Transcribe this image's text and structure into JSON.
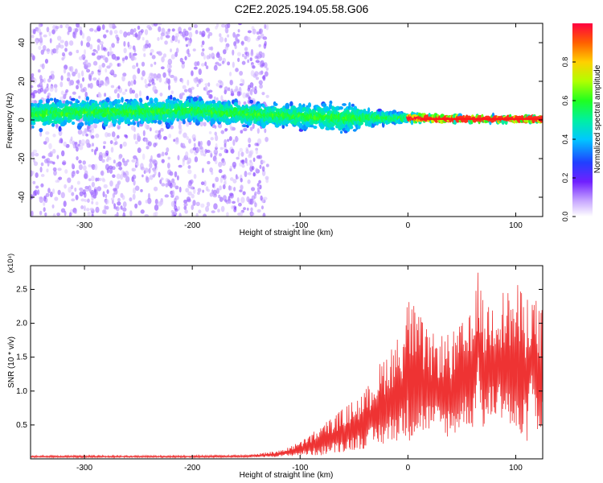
{
  "title": "C2E2.2025.194.05.58.G06",
  "colors": {
    "snr_line": "#ee3333",
    "spectrogram_core": "#ff1a1a",
    "spectrogram_low": "#b080f0"
  },
  "chart_data": [
    {
      "type": "heatmap",
      "xlabel": "Height of straight line (km)",
      "ylabel": "Frequency (Hz)",
      "xlim": [
        -350,
        125
      ],
      "ylim": [
        -50,
        50
      ],
      "xticks": [
        -300,
        -200,
        -100,
        0,
        100
      ],
      "yticks": [
        -40,
        -20,
        0,
        20,
        40
      ],
      "colorbar": {
        "label": "Normalized spectral amplitude",
        "range": [
          0,
          1
        ],
        "ticks": [
          "0.0",
          "0.2",
          "0.4",
          "0.6",
          "0.8"
        ]
      },
      "description_values": {
        "noise_spread_region_x": [
          -350,
          -130
        ],
        "signal_band_center_hz": [
          {
            "x": -340,
            "y": 3
          },
          {
            "x": -300,
            "y": 4
          },
          {
            "x": -250,
            "y": 4
          },
          {
            "x": -200,
            "y": 5
          },
          {
            "x": -150,
            "y": 3
          },
          {
            "x": -100,
            "y": 2
          },
          {
            "x": -60,
            "y": 1
          },
          {
            "x": -30,
            "y": 1
          },
          {
            "x": 0,
            "y": 1
          },
          {
            "x": 50,
            "y": 0.5
          },
          {
            "x": 125,
            "y": 0.5
          }
        ],
        "signal_band_halfwidth_hz": [
          {
            "x": -340,
            "y": 9
          },
          {
            "x": -200,
            "y": 8
          },
          {
            "x": -100,
            "y": 8
          },
          {
            "x": -60,
            "y": 10
          },
          {
            "x": -30,
            "y": 5
          },
          {
            "x": 0,
            "y": 3
          },
          {
            "x": 50,
            "y": 2
          },
          {
            "x": 125,
            "y": 2
          }
        ]
      }
    },
    {
      "type": "line",
      "xlabel": "Height of straight line (km)",
      "ylabel": "SNR (10 * v/v)",
      "y_multiplier": "(x10⁴)",
      "xlim": [
        -350,
        125
      ],
      "ylim": [
        0,
        2.85
      ],
      "xticks": [
        -300,
        -200,
        -100,
        0,
        100
      ],
      "yticks": [
        "0.5",
        "1.0",
        "1.5",
        "2.0",
        "2.5"
      ],
      "series": [
        {
          "points_x": [
            -350,
            -300,
            -250,
            -200,
            -150,
            -120,
            -100,
            -80,
            -60,
            -40,
            -20,
            -5,
            0,
            20,
            40,
            55,
            60,
            65,
            70,
            80,
            90,
            100,
            110,
            115,
            120,
            125
          ],
          "upper_envelope_y": [
            0.05,
            0.05,
            0.05,
            0.05,
            0.06,
            0.12,
            0.25,
            0.5,
            0.75,
            1.0,
            1.6,
            1.9,
            2.45,
            1.85,
            1.85,
            2.1,
            2.15,
            2.8,
            2.3,
            2.45,
            2.5,
            2.6,
            2.45,
            2.45,
            2.35,
            2.3
          ],
          "lower_envelope_y": [
            0.02,
            0.02,
            0.02,
            0.02,
            0.02,
            0.03,
            0.05,
            0.05,
            0.1,
            0.15,
            0.2,
            0.3,
            0.25,
            0.4,
            0.3,
            0.5,
            0.4,
            1.0,
            0.4,
            0.6,
            0.6,
            0.2,
            0.2,
            0.9,
            0.3,
            0.5
          ]
        }
      ]
    }
  ]
}
